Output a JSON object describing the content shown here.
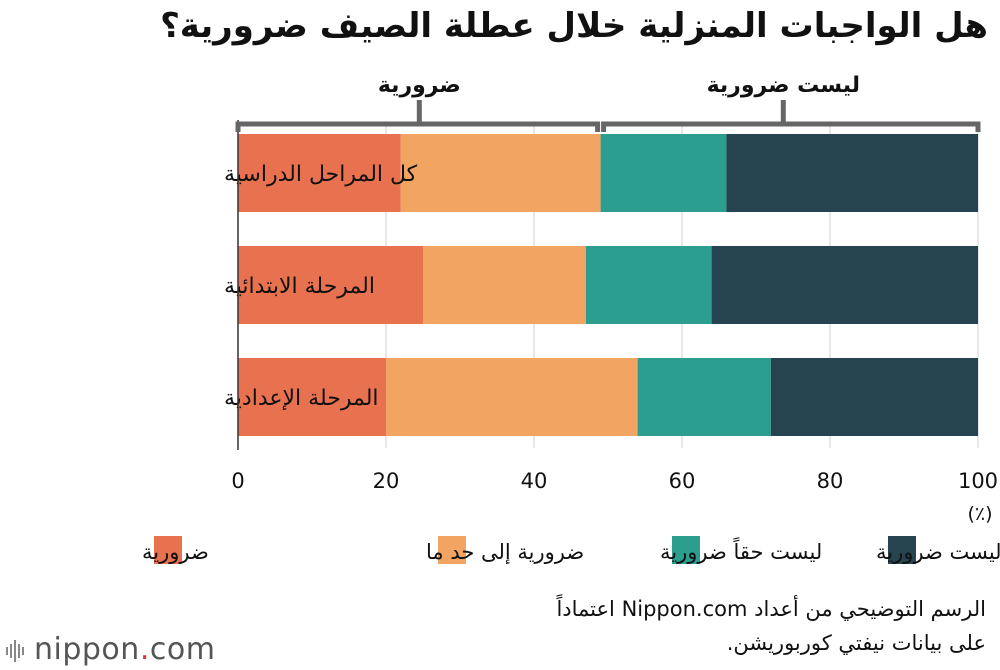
{
  "title": "هل الواجبات المنزلية خلال عطلة الصيف ضرورية؟",
  "chart_data": {
    "type": "bar",
    "orientation": "horizontal",
    "stacked": true,
    "categories": [
      "كل المراحل الدراسية",
      "المرحلة الابتدائية",
      "المرحلة الإعدادية"
    ],
    "series": [
      {
        "name": "ضرورية",
        "values": [
          22,
          25,
          20
        ],
        "color": "#e8714f"
      },
      {
        "name": "ضرورية إلى حد ما",
        "values": [
          27,
          22,
          34
        ],
        "color": "#f2a462"
      },
      {
        "name": "ليست حقاً ضرورية",
        "values": [
          17,
          17,
          18
        ],
        "color": "#2b9e8f"
      },
      {
        "name": "ليست ضرورية",
        "values": [
          34,
          36,
          28
        ],
        "color": "#26444f"
      }
    ],
    "xlim": [
      0,
      100
    ],
    "xticks": [
      "0",
      "20",
      "40",
      "60",
      "80",
      "100"
    ],
    "unit": "(٪)",
    "bracket_labels": {
      "left": "ضرورية",
      "right": "ليست ضرورية"
    },
    "legend_position": "bottom",
    "grid": "vertical"
  },
  "source_text": "الرسم التوضيحي من أعداد Nippon.com اعتماداً على بيانات نيفتي كوربوريشن.",
  "logo": {
    "name": "nippon",
    "suffix": ".com"
  }
}
